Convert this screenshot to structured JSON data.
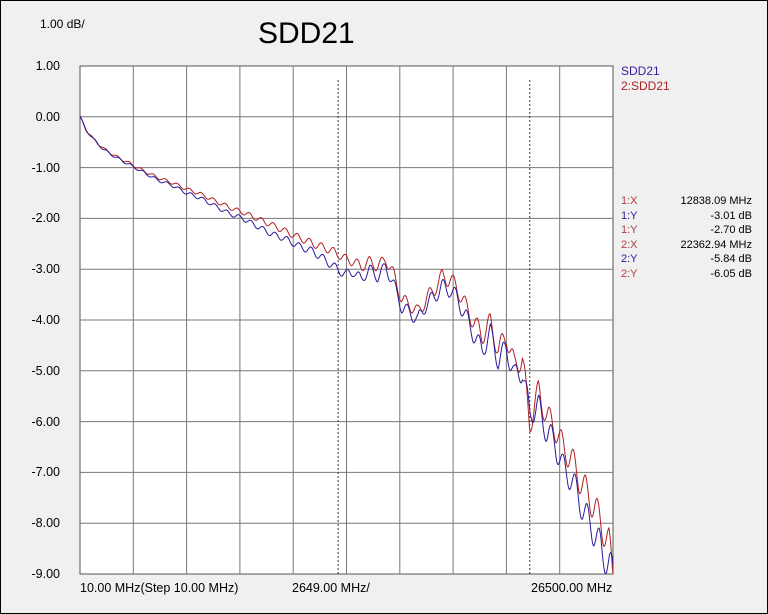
{
  "header": {
    "scale": "1.00 dB/",
    "title": "SDD21"
  },
  "colors": {
    "trace1": "#2a1a9a",
    "trace2": "#b02020",
    "grid": "#777777",
    "marker": "#333333"
  },
  "legend": [
    {
      "label": "SDD21",
      "color": "#3a1aa0"
    },
    {
      "label": "2:SDD21",
      "color": "#b02020"
    }
  ],
  "markers": [
    {
      "key": "1:X",
      "value": "12838.09 MHz",
      "color": "#b04040"
    },
    {
      "key": "1:Y",
      "value": "-3.01 dB",
      "color": "#2a1a9a"
    },
    {
      "key": "1:Y",
      "value": "-2.70 dB",
      "color": "#b04040"
    },
    {
      "key": "2:X",
      "value": "22362.94 MHz",
      "color": "#b04040"
    },
    {
      "key": "2:Y",
      "value": "-5.84 dB",
      "color": "#2a1a9a"
    },
    {
      "key": "2:Y",
      "value": "-6.05 dB",
      "color": "#b04040"
    }
  ],
  "chart_data": {
    "type": "line",
    "title": "SDD21",
    "x_range_mhz": [
      10,
      26500
    ],
    "ylim": [
      -9,
      1
    ],
    "yticks": [
      "1.00",
      "0.00",
      "-1.00",
      "-2.00",
      "-3.00",
      "-4.00",
      "-5.00",
      "-6.00",
      "-7.00",
      "-8.00",
      "-9.00"
    ],
    "x_start_label": "10.00 MHz(Step 10.00 MHz)",
    "x_div_label": "2649.00 MHz/",
    "x_end_label": "26500.00 MHz",
    "marker_x_mhz": [
      12838.09,
      22362.94
    ],
    "grid": true,
    "series": [
      {
        "name": "SDD21",
        "x": [
          10,
          300,
          700,
          1200,
          1800,
          2500,
          3200,
          3900,
          4600,
          5300,
          6000,
          6700,
          7400,
          8100,
          8800,
          9500,
          10200,
          10900,
          11600,
          12300,
          12838,
          13200,
          13600,
          14000,
          14400,
          14800,
          15200,
          15600,
          16000,
          16400,
          16800,
          17200,
          17600,
          18000,
          18400,
          18800,
          19200,
          19600,
          20000,
          20400,
          20800,
          21200,
          21600,
          22000,
          22363,
          22800,
          23200,
          23600,
          24000,
          24400,
          24800,
          25200,
          25600,
          26000,
          26300,
          26500
        ],
        "y": [
          0.0,
          -0.25,
          -0.45,
          -0.65,
          -0.8,
          -0.95,
          -1.1,
          -1.25,
          -1.35,
          -1.5,
          -1.6,
          -1.75,
          -1.9,
          -2.0,
          -2.15,
          -2.3,
          -2.4,
          -2.55,
          -2.65,
          -2.85,
          -3.01,
          -3.1,
          -3.05,
          -3.2,
          -3.0,
          -3.15,
          -2.95,
          -3.3,
          -3.75,
          -3.85,
          -4.0,
          -3.7,
          -3.55,
          -3.35,
          -3.4,
          -3.6,
          -3.95,
          -4.3,
          -4.6,
          -4.25,
          -4.8,
          -4.55,
          -5.1,
          -5.0,
          -5.84,
          -5.7,
          -6.2,
          -6.4,
          -6.9,
          -7.1,
          -7.5,
          -7.9,
          -8.2,
          -8.6,
          -8.8,
          -9.0
        ]
      },
      {
        "name": "2:SDD21",
        "x": [
          10,
          300,
          700,
          1200,
          1800,
          2500,
          3200,
          3900,
          4600,
          5300,
          6000,
          6700,
          7400,
          8100,
          8800,
          9500,
          10200,
          10900,
          11600,
          12300,
          12838,
          13200,
          13600,
          14000,
          14400,
          14800,
          15200,
          15600,
          16000,
          16400,
          16800,
          17200,
          17600,
          18000,
          18400,
          18800,
          19200,
          19600,
          20000,
          20400,
          20800,
          21200,
          21600,
          22000,
          22363,
          22800,
          23200,
          23600,
          24000,
          24400,
          24800,
          25200,
          25600,
          26000,
          26300,
          26500
        ],
        "y": [
          0.0,
          -0.25,
          -0.45,
          -0.63,
          -0.78,
          -0.92,
          -1.07,
          -1.2,
          -1.3,
          -1.42,
          -1.52,
          -1.65,
          -1.78,
          -1.88,
          -2.0,
          -2.12,
          -2.25,
          -2.38,
          -2.5,
          -2.6,
          -2.7,
          -2.8,
          -2.85,
          -2.95,
          -2.85,
          -2.95,
          -2.8,
          -3.1,
          -3.6,
          -3.7,
          -3.85,
          -3.6,
          -3.4,
          -3.15,
          -3.2,
          -3.4,
          -3.75,
          -4.05,
          -4.3,
          -4.05,
          -4.6,
          -4.3,
          -4.9,
          -4.75,
          -6.05,
          -5.4,
          -5.9,
          -6.1,
          -6.5,
          -6.7,
          -7.1,
          -7.4,
          -7.7,
          -8.1,
          -8.4,
          -9.0
        ]
      }
    ]
  }
}
